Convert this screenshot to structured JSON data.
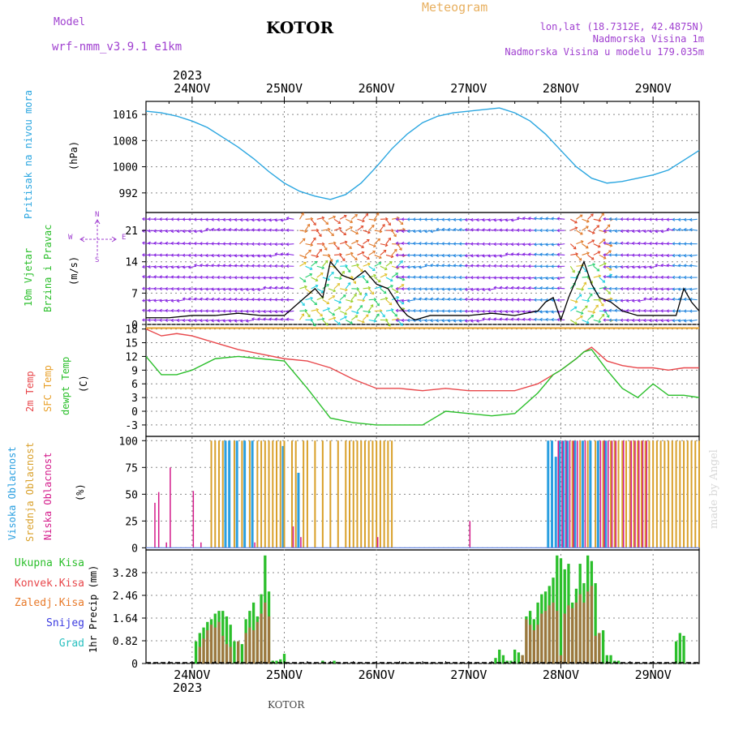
{
  "header": {
    "model_label": "Model",
    "model_name": "wrf-nmm_v3.9.1 e1km",
    "station": "KOTOR",
    "product": "Meteogram",
    "lonlat": "lon,lat (18.7312E, 42.4875N)",
    "elevation": "Nadmorska Visina 1m",
    "model_elevation": "Nadmorska Visina u modelu 179.035m",
    "watermark": "made by Angel",
    "footer": "KOTOR"
  },
  "colors": {
    "pressure": "#2aa6e0",
    "temp2m": "#e8474b",
    "sfc_temp": "#e8a02a",
    "dewpt": "#2bbf2b",
    "high_cloud": "#2a9fe0",
    "mid_cloud": "#d9a02a",
    "low_cloud": "#d41a8a",
    "precip_total": "#2bbf2b",
    "precip_conv": "#e8474b",
    "wind_purple": "#8a2be2",
    "header_purple": "#a040d0",
    "product_orange": "#e8b060"
  },
  "time_axis": {
    "year_label": "2023",
    "days": [
      "24NOV",
      "25NOV",
      "26NOV",
      "27NOV",
      "28NOV",
      "29NOV"
    ],
    "start_hour": 12,
    "end_hour": 156
  },
  "panels": {
    "pressure": {
      "label_main": "Pritisak na nivou mora",
      "unit": "(hPa)",
      "yticks": [
        992,
        1000,
        1008,
        1016
      ]
    },
    "wind": {
      "label_main_1": "10m Vjetar",
      "label_main_2": "Brzina i Pravac",
      "unit": "(m/s)",
      "compass_n": "N",
      "compass_s": "S",
      "compass_e": "E",
      "compass_w": "W",
      "yticks": [
        0,
        7,
        14,
        21
      ]
    },
    "temperature": {
      "label_1": "2m Temp",
      "label_2": "SFC Temp",
      "label_3": "dewpt Temp",
      "unit": "(C)",
      "yticks": [
        -3,
        0,
        3,
        6,
        9,
        12,
        15,
        18
      ]
    },
    "cloud": {
      "label_1": "Visoka Oblacnost",
      "label_2": "Srednja Oblacnost",
      "label_3": "Niska Oblacnost",
      "unit": "(%)",
      "yticks": [
        0,
        25,
        50,
        75,
        100
      ]
    },
    "precip": {
      "legend": [
        "Ukupna Kisa",
        "Konvek.Kisa",
        "Zaledj.Kisa",
        "Snijeg",
        "Grad"
      ],
      "legend_colors": [
        "#2bbf2b",
        "#e8474b",
        "#e87a2a",
        "#3a3ae0",
        "#2ac0c0"
      ],
      "axis_label": "1hr Precip (mm)",
      "yticks": [
        0,
        0.82,
        1.64,
        2.46,
        3.28
      ]
    }
  },
  "chart_data": [
    {
      "type": "line",
      "name": "pressure",
      "x_hours": [
        12,
        16,
        20,
        24,
        28,
        32,
        36,
        40,
        44,
        48,
        52,
        56,
        60,
        64,
        68,
        72,
        76,
        80,
        84,
        88,
        92,
        96,
        100,
        104,
        108,
        112,
        116,
        120,
        124,
        128,
        132,
        136,
        140,
        144,
        148,
        152,
        156
      ],
      "values": [
        1017,
        1016.5,
        1015.5,
        1014,
        1012,
        1009,
        1006,
        1002.5,
        998.5,
        995,
        992.5,
        991,
        990,
        991.5,
        995,
        1000,
        1005.5,
        1010,
        1013.5,
        1015.5,
        1016.5,
        1017,
        1017.5,
        1018,
        1016.5,
        1014,
        1010,
        1005,
        1000,
        996.5,
        995,
        995.5,
        996.5,
        997.5,
        999,
        1002,
        1005
      ],
      "ylim": [
        986,
        1020
      ]
    },
    {
      "type": "line",
      "name": "wind_speed",
      "x_hours": [
        12,
        18,
        24,
        30,
        36,
        42,
        48,
        52,
        56,
        58,
        60,
        63,
        66,
        69,
        72,
        75,
        78,
        80,
        82,
        86,
        90,
        96,
        102,
        108,
        114,
        116,
        118,
        120,
        122,
        124,
        126,
        128,
        130,
        133,
        136,
        140,
        144,
        150,
        152,
        154,
        156
      ],
      "values": [
        1.5,
        1.5,
        2,
        2,
        2.5,
        2,
        2,
        5,
        8,
        6,
        14,
        11,
        10,
        12,
        9,
        8,
        4,
        2,
        1,
        2,
        2,
        2,
        2.5,
        2,
        3,
        5,
        6,
        1,
        6,
        10,
        14,
        9,
        6,
        5,
        3,
        2,
        2,
        2,
        8,
        5,
        3
      ],
      "ylim": [
        0,
        25
      ]
    },
    {
      "type": "line",
      "name": "temperature",
      "x_hours": [
        12,
        16,
        20,
        24,
        30,
        36,
        42,
        48,
        54,
        60,
        66,
        72,
        78,
        84,
        90,
        96,
        102,
        108,
        114,
        118,
        120,
        124,
        126,
        128,
        132,
        136,
        140,
        144,
        148,
        152,
        156
      ],
      "series": [
        {
          "name": "2m Temp",
          "values": [
            18,
            16.5,
            17,
            16.5,
            15,
            13.5,
            12.5,
            11.5,
            11,
            9.5,
            7,
            5,
            5,
            4.5,
            5,
            4.5,
            4.5,
            4.5,
            6,
            8,
            9,
            11.5,
            13,
            14,
            11,
            10,
            9.5,
            9.5,
            9,
            9.5,
            9.5
          ]
        },
        {
          "name": "SFC Temp",
          "values": [
            18.2,
            18.2,
            18.2,
            18.2,
            18.2,
            18.2,
            18.2,
            18.2,
            18.2,
            18.2,
            18.2,
            18.2,
            18.2,
            18.2,
            18.2,
            18.2,
            18.2,
            18.2,
            18.2,
            18.2,
            18.2,
            18.2,
            18.2,
            18.2,
            18.2,
            18.2,
            18.2,
            18.2,
            18.2,
            18.2,
            18.2
          ]
        },
        {
          "name": "dewpt Temp",
          "values": [
            12,
            8,
            8,
            9,
            11.5,
            12,
            11.5,
            11,
            5,
            -1.5,
            -2.5,
            -3,
            -3,
            -3,
            0,
            -0.5,
            -1,
            -0.5,
            4,
            8,
            9,
            11.5,
            13,
            13.5,
            9,
            5,
            3,
            6,
            3.5,
            3.5,
            3
          ]
        }
      ],
      "ylim": [
        -5.5,
        19
      ]
    },
    {
      "type": "bar",
      "name": "cloud",
      "series": [
        {
          "name": "Visoka Oblacnost",
          "x_hours": [
            33,
            34,
            36,
            38,
            40,
            48,
            52,
            117,
            118,
            119,
            120,
            121,
            122,
            124,
            126,
            128,
            130,
            132
          ],
          "values": [
            100,
            100,
            100,
            100,
            100,
            95,
            70,
            100,
            100,
            85,
            100,
            100,
            100,
            100,
            100,
            100,
            100,
            100
          ]
        },
        {
          "name": "Srednja Oblacnost",
          "x_hours": [
            29,
            30,
            31,
            32,
            35,
            37,
            39,
            41,
            42,
            43,
            44,
            45,
            46,
            47,
            48,
            50,
            51,
            53,
            54,
            56,
            58,
            60,
            62,
            64,
            65,
            66,
            67,
            68,
            69,
            70,
            71,
            72,
            73,
            74,
            75,
            76,
            123,
            125,
            127,
            129,
            131,
            133,
            134,
            135,
            136,
            137,
            138,
            139,
            140,
            141,
            142,
            143,
            144,
            145,
            146,
            147,
            148,
            149,
            150,
            151,
            152,
            153,
            154,
            155,
            156
          ],
          "values": [
            100,
            100,
            100,
            100,
            100,
            100,
            100,
            100,
            100,
            100,
            100,
            100,
            100,
            100,
            100,
            100,
            100,
            100,
            100,
            100,
            100,
            100,
            100,
            100,
            100,
            100,
            100,
            100,
            100,
            100,
            100,
            100,
            100,
            100,
            100,
            100,
            100,
            100,
            100,
            100,
            100,
            100,
            100,
            100,
            100,
            100,
            100,
            100,
            100,
            100,
            100,
            100,
            100,
            100,
            100,
            100,
            100,
            100,
            100,
            100,
            100,
            100,
            100,
            100,
            100
          ]
        },
        {
          "name": "Niska Oblacnost",
          "x_hours": [
            14,
            15,
            17,
            18,
            24,
            26,
            40,
            50,
            52,
            72,
            96,
            119,
            120,
            121,
            122,
            123,
            124,
            126,
            130,
            131,
            132,
            133,
            134,
            136,
            138,
            139,
            140,
            141,
            142
          ],
          "values": [
            42,
            52,
            5,
            75,
            53,
            5,
            5,
            20,
            10,
            10,
            25,
            100,
            100,
            100,
            100,
            100,
            100,
            100,
            100,
            100,
            100,
            100,
            100,
            100,
            100,
            100,
            100,
            100,
            100
          ]
        }
      ],
      "ylim": [
        0,
        100
      ]
    },
    {
      "type": "bar",
      "name": "precip",
      "series": [
        {
          "name": "Ukupna Kisa",
          "x_hours": [
            25,
            26,
            27,
            28,
            29,
            30,
            31,
            32,
            33,
            34,
            35,
            36,
            37,
            38,
            39,
            40,
            41,
            42,
            43,
            44,
            45,
            46,
            47,
            48,
            58,
            61,
            103,
            104,
            105,
            106,
            107,
            108,
            109,
            110,
            111,
            112,
            113,
            114,
            115,
            116,
            117,
            118,
            119,
            120,
            121,
            122,
            123,
            124,
            125,
            126,
            127,
            128,
            129,
            130,
            131,
            132,
            133,
            134,
            135,
            150,
            151,
            152
          ],
          "values": [
            0.8,
            1.1,
            1.3,
            1.5,
            1.6,
            1.8,
            1.9,
            1.9,
            1.7,
            1.4,
            0.8,
            0.8,
            0.7,
            1.6,
            1.9,
            2.2,
            1.7,
            2.5,
            3.9,
            2.6,
            0.1,
            0.1,
            0.15,
            0.35,
            0.1,
            0.1,
            0.2,
            0.5,
            0.3,
            0.1,
            0.1,
            0.5,
            0.4,
            0.3,
            1.7,
            1.9,
            1.6,
            2.2,
            2.5,
            2.6,
            2.8,
            3.1,
            3.9,
            3.8,
            3.4,
            3.6,
            2.2,
            2.7,
            3.6,
            2.9,
            3.9,
            3.7,
            2.9,
            1.1,
            1.2,
            0.3,
            0.3,
            0.1,
            0.1,
            0.8,
            1.1,
            1.0
          ]
        },
        {
          "name": "Konvek.Kisa",
          "x_hours": [
            26,
            27,
            28,
            29,
            30,
            31,
            32,
            33,
            34,
            36,
            38,
            39,
            40,
            41,
            42,
            43,
            44,
            110,
            111,
            112,
            113,
            114,
            115,
            116,
            117,
            118,
            119,
            120,
            121,
            122,
            123,
            124,
            125,
            126,
            127,
            128,
            129,
            130
          ],
          "values": [
            0.6,
            0.9,
            1.2,
            1.4,
            1.3,
            1.5,
            1.0,
            0.7,
            0.6,
            0.8,
            1.1,
            1.3,
            1.2,
            1.5,
            1.8,
            2.2,
            1.7,
            0.3,
            1.6,
            1.4,
            1.2,
            1.4,
            1.8,
            1.9,
            2.1,
            2.2,
            1.9,
            0.3,
            1.8,
            2.1,
            2.0,
            2.2,
            2.5,
            2.2,
            2.6,
            2.8,
            1.0,
            1.1
          ]
        }
      ],
      "ylim": [
        0,
        4.1
      ]
    },
    {
      "type": "scatter",
      "name": "wind_vectors",
      "rows_ms": [
        1,
        3,
        5.5,
        8,
        10.5,
        13,
        15.5,
        18,
        21,
        23.5
      ]
    }
  ]
}
